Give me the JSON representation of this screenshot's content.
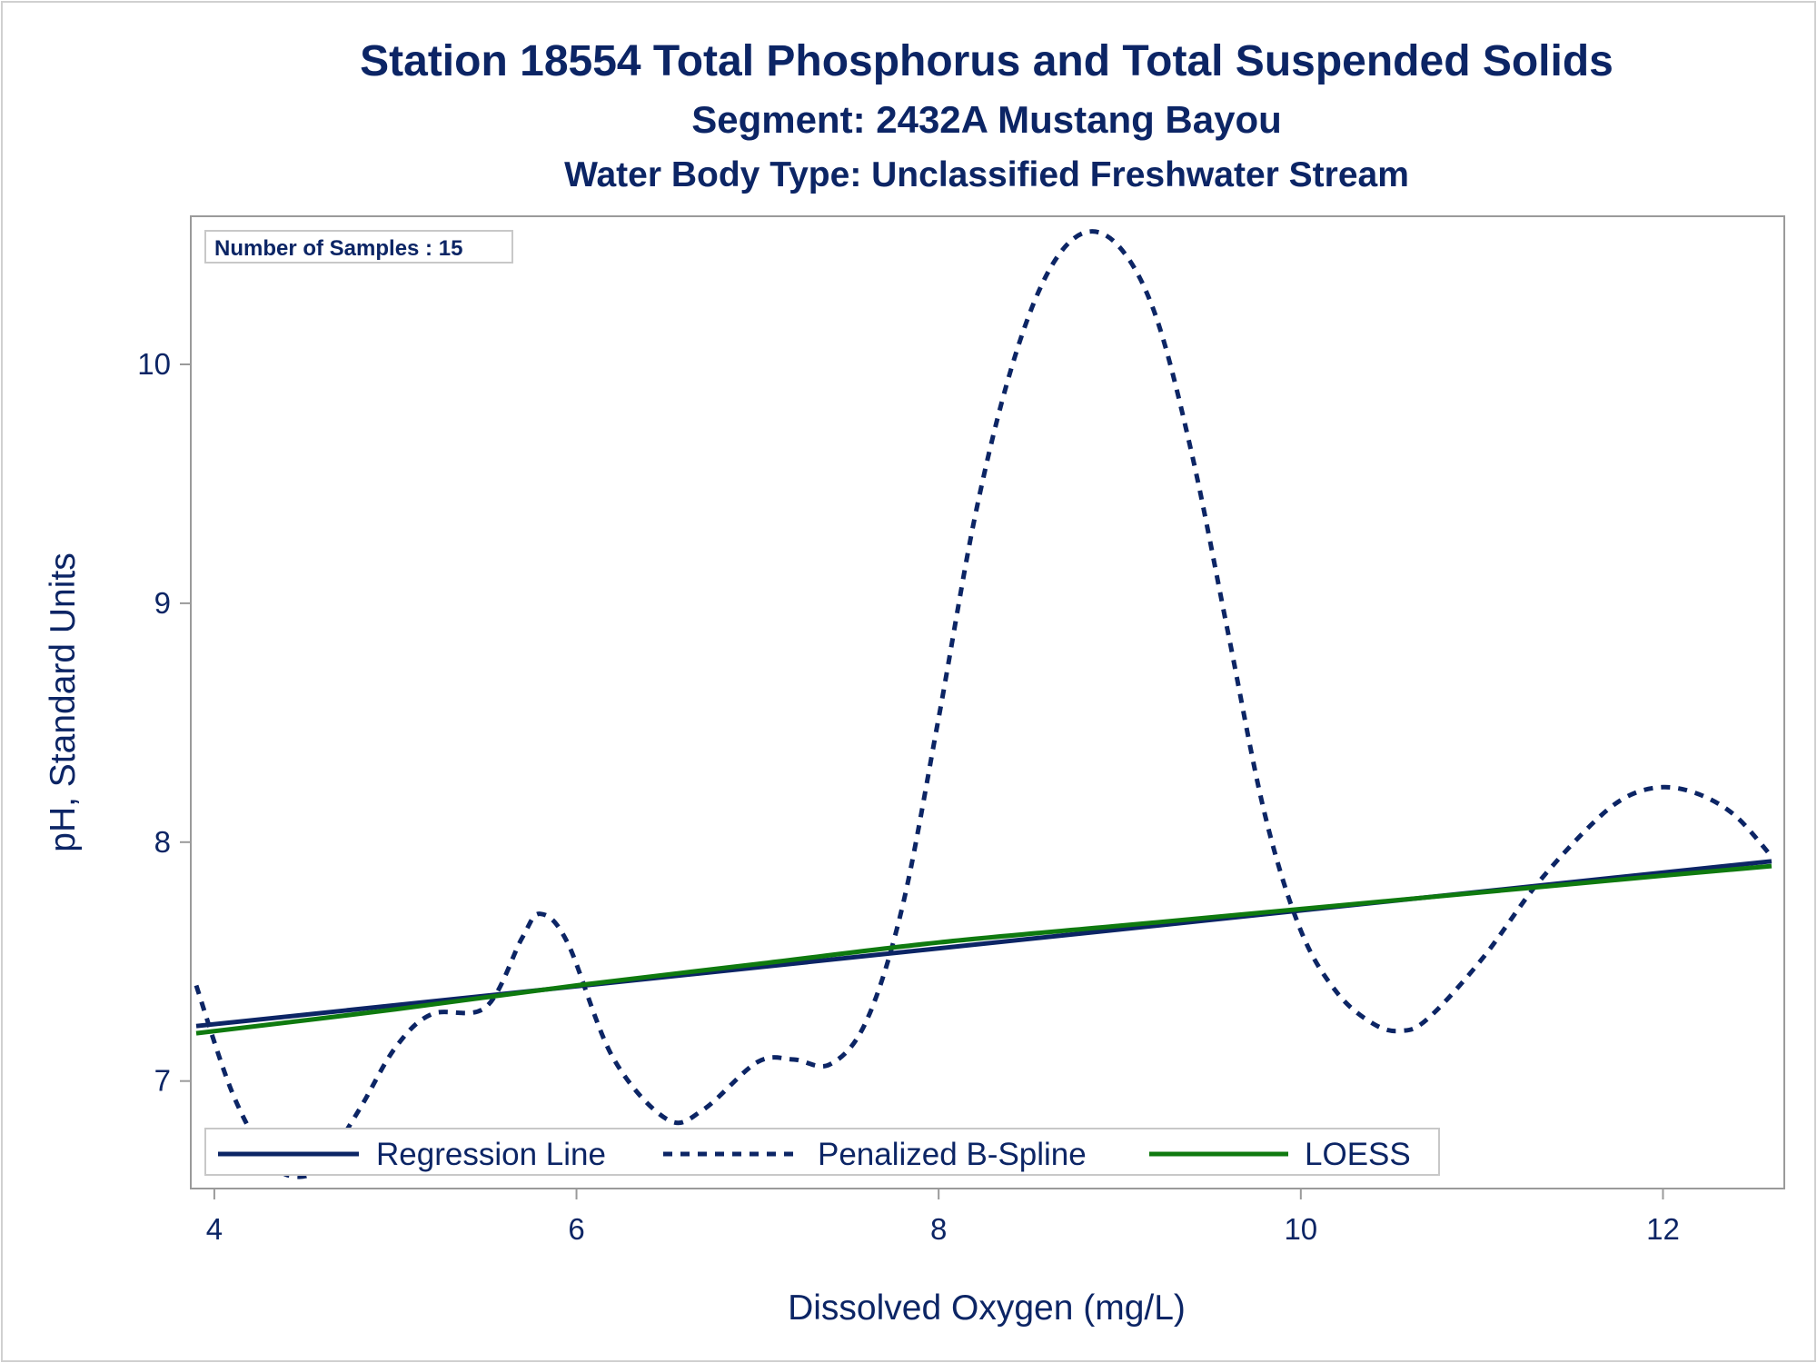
{
  "chart_data": {
    "type": "line",
    "title": "Station 18554  Total Phosphorus and Total Suspended Solids",
    "subtitle": "Segment: 2432A  Mustang Bayou",
    "subtitle2": "Water Body Type: Unclassified Freshwater Stream",
    "xlabel": "Dissolved Oxygen (mg/L)",
    "ylabel": "pH, Standard Units",
    "xlim": [
      3.87,
      12.67
    ],
    "ylim": [
      6.55,
      10.62
    ],
    "xticks": [
      4,
      6,
      8,
      10,
      12
    ],
    "yticks": [
      7,
      8,
      9,
      10
    ],
    "inset_label": "Number of Samples : 15",
    "legend_placement": "bottom-left inside",
    "grid": false,
    "colors": {
      "regression": "#0c2565",
      "spline": "#0c2565",
      "loess": "#0f7a0f",
      "text": "#0c2565",
      "axis": "#9a9a9a"
    },
    "series": [
      {
        "name": "Regression Line",
        "style": "solid",
        "x": [
          3.9,
          12.6
        ],
        "y": [
          7.23,
          7.92
        ]
      },
      {
        "name": "Penalized B-Spline",
        "style": "dashed",
        "x": [
          3.9,
          4.1,
          4.3,
          4.45,
          4.6,
          4.8,
          5.0,
          5.2,
          5.5,
          5.7,
          5.8,
          5.95,
          6.2,
          6.5,
          6.7,
          7.0,
          7.2,
          7.4,
          7.6,
          7.8,
          8.0,
          8.2,
          8.4,
          8.6,
          8.8,
          9.0,
          9.2,
          9.4,
          9.6,
          9.8,
          10.0,
          10.2,
          10.4,
          10.55,
          10.7,
          11.0,
          11.3,
          11.6,
          11.8,
          12.0,
          12.2,
          12.4,
          12.6
        ],
        "y": [
          7.4,
          6.95,
          6.67,
          6.6,
          6.65,
          6.88,
          7.14,
          7.28,
          7.31,
          7.6,
          7.7,
          7.58,
          7.1,
          6.84,
          6.88,
          7.08,
          7.09,
          7.07,
          7.25,
          7.73,
          8.52,
          9.36,
          9.98,
          10.38,
          10.55,
          10.49,
          10.2,
          9.62,
          8.87,
          8.12,
          7.63,
          7.37,
          7.24,
          7.21,
          7.26,
          7.51,
          7.82,
          8.07,
          8.19,
          8.23,
          8.2,
          8.11,
          7.94
        ]
      },
      {
        "name": "LOESS",
        "style": "solid",
        "x": [
          3.9,
          5.0,
          6.0,
          7.0,
          8.0,
          9.0,
          10.0,
          11.0,
          12.0,
          12.6
        ],
        "y": [
          7.2,
          7.3,
          7.4,
          7.49,
          7.58,
          7.65,
          7.72,
          7.79,
          7.86,
          7.9
        ]
      }
    ]
  }
}
